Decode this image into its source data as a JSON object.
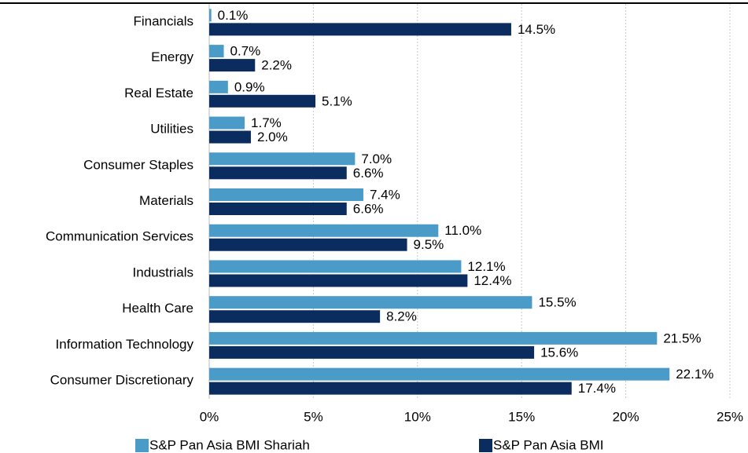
{
  "chart_data": {
    "type": "hbar",
    "categories": [
      "Financials",
      "Energy",
      "Real Estate",
      "Utilities",
      "Consumer Staples",
      "Materials",
      "Communication Services",
      "Industrials",
      "Health Care",
      "Information Technology",
      "Consumer Discretionary"
    ],
    "series": [
      {
        "name": "S&P Pan Asia BMI Shariah",
        "color": "#4a9bc8",
        "values": [
          0.1,
          0.7,
          0.9,
          1.7,
          7.0,
          7.4,
          11.0,
          12.1,
          15.5,
          21.5,
          22.1
        ],
        "value_labels": [
          "0.1%",
          "0.7%",
          "0.9%",
          "1.7%",
          "7.0%",
          "7.4%",
          "11.0%",
          "12.1%",
          "15.5%",
          "21.5%",
          "22.1%"
        ]
      },
      {
        "name": "S&P Pan Asia BMI",
        "color": "#0a2c5e",
        "values": [
          14.5,
          2.2,
          5.1,
          2.0,
          6.6,
          6.6,
          9.5,
          12.4,
          8.2,
          15.6,
          17.4
        ],
        "value_labels": [
          "14.5%",
          "2.2%",
          "5.1%",
          "2.0%",
          "6.6%",
          "6.6%",
          "9.5%",
          "12.4%",
          "8.2%",
          "15.6%",
          "17.4%"
        ]
      }
    ],
    "xlim": [
      0,
      25
    ],
    "xticks": [
      {
        "value": 0,
        "label": "0%"
      },
      {
        "value": 5,
        "label": "5%"
      },
      {
        "value": 10,
        "label": "10%"
      },
      {
        "value": 15,
        "label": "15%"
      },
      {
        "value": 20,
        "label": "20%"
      },
      {
        "value": 25,
        "label": "25%"
      }
    ],
    "grid": true,
    "legend": "bottom"
  }
}
